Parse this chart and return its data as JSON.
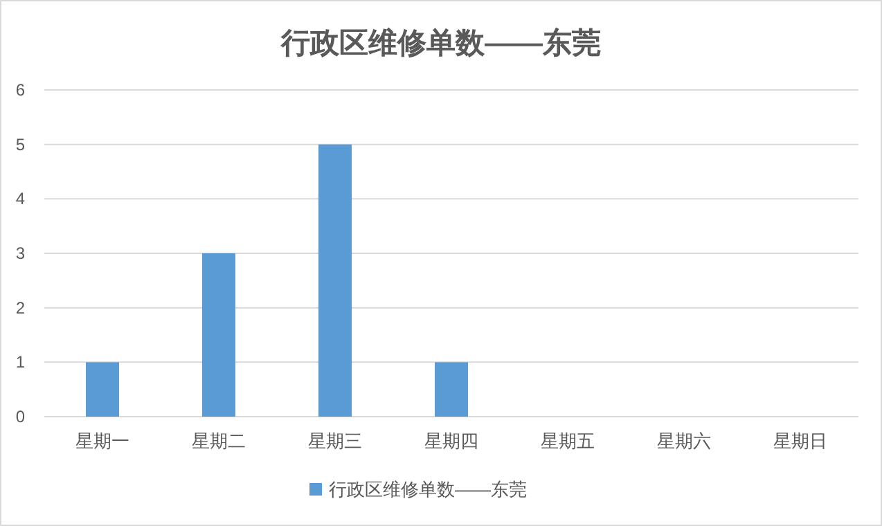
{
  "chart_data": {
    "type": "bar",
    "title": "行政区维修单数——东莞",
    "categories": [
      "星期一",
      "星期二",
      "星期三",
      "星期四",
      "星期五",
      "星期六",
      "星期日"
    ],
    "series": [
      {
        "name": "行政区维修单数——东莞",
        "color": "#5b9bd5",
        "values": [
          1,
          3,
          5,
          1,
          0,
          0,
          0
        ]
      }
    ],
    "ylim": [
      0,
      6
    ],
    "yticks": [
      0,
      1,
      2,
      3,
      4,
      5,
      6
    ],
    "grid": "y",
    "legend": "bottom"
  }
}
